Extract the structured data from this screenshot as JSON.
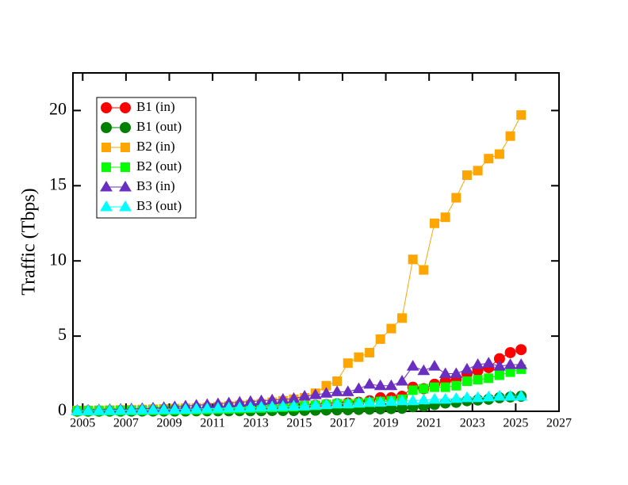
{
  "chart_data": {
    "type": "line",
    "ylabel": "Traffic (Tbps)",
    "x": [
      2004.75,
      2005.25,
      2005.75,
      2006.25,
      2006.75,
      2007.25,
      2007.75,
      2008.25,
      2008.75,
      2009.25,
      2009.75,
      2010.25,
      2010.75,
      2011.25,
      2011.75,
      2012.25,
      2012.75,
      2013.25,
      2013.75,
      2014.25,
      2014.75,
      2015.25,
      2015.75,
      2016.25,
      2016.75,
      2017.25,
      2017.75,
      2018.25,
      2018.75,
      2019.25,
      2019.75,
      2020.25,
      2020.75,
      2021.25,
      2021.75,
      2022.25,
      2022.75,
      2023.25,
      2023.75,
      2024.25,
      2024.75,
      2025.25
    ],
    "series": [
      {
        "name": "B1 (in)",
        "color": "#ff0000",
        "marker": "circle",
        "values": [
          0.02,
          0.03,
          0.03,
          0.04,
          0.05,
          0.05,
          0.06,
          0.07,
          0.08,
          0.09,
          0.1,
          0.11,
          0.12,
          0.13,
          0.15,
          0.17,
          0.19,
          0.21,
          0.24,
          0.27,
          0.3,
          0.35,
          0.4,
          0.45,
          0.5,
          0.55,
          0.6,
          0.7,
          0.9,
          0.9,
          1.0,
          1.6,
          1.5,
          1.8,
          2.0,
          2.1,
          2.5,
          2.7,
          2.9,
          3.5,
          3.9,
          4.1
        ]
      },
      {
        "name": "B1 (out)",
        "color": "#008000",
        "marker": "circle",
        "values": [
          0.01,
          0.01,
          0.01,
          0.01,
          0.01,
          0.01,
          0.02,
          0.02,
          0.02,
          0.02,
          0.02,
          0.03,
          0.03,
          0.03,
          0.03,
          0.04,
          0.04,
          0.04,
          0.05,
          0.05,
          0.05,
          0.06,
          0.07,
          0.08,
          0.09,
          0.1,
          0.12,
          0.14,
          0.16,
          0.18,
          0.2,
          0.3,
          0.35,
          0.45,
          0.55,
          0.6,
          0.7,
          0.75,
          0.8,
          0.9,
          0.95,
          1.0
        ]
      },
      {
        "name": "B2 (in)",
        "color": "#ffa500",
        "marker": "square",
        "values": [
          0.05,
          0.06,
          0.07,
          0.08,
          0.09,
          0.1,
          0.12,
          0.14,
          0.16,
          0.18,
          0.2,
          0.22,
          0.25,
          0.3,
          0.35,
          0.4,
          0.45,
          0.5,
          0.6,
          0.7,
          0.8,
          0.9,
          1.2,
          1.7,
          2.0,
          3.2,
          3.6,
          3.9,
          4.8,
          5.5,
          6.2,
          10.1,
          9.4,
          12.5,
          12.9,
          14.2,
          15.7,
          16.0,
          16.8,
          17.1,
          18.3,
          19.7
        ]
      },
      {
        "name": "B2 (out)",
        "color": "#00ff00",
        "marker": "square",
        "values": [
          0.02,
          0.03,
          0.03,
          0.04,
          0.04,
          0.05,
          0.06,
          0.07,
          0.08,
          0.09,
          0.1,
          0.11,
          0.12,
          0.14,
          0.16,
          0.18,
          0.2,
          0.22,
          0.25,
          0.28,
          0.3,
          0.35,
          0.4,
          0.45,
          0.5,
          0.5,
          0.55,
          0.6,
          0.65,
          0.7,
          0.8,
          1.4,
          1.5,
          1.6,
          1.6,
          1.7,
          2.0,
          2.1,
          2.2,
          2.4,
          2.6,
          2.8
        ]
      },
      {
        "name": "B3 (in)",
        "color": "#6a2ec0",
        "marker": "triangle",
        "values": [
          0.05,
          0.07,
          0.09,
          0.11,
          0.13,
          0.15,
          0.18,
          0.21,
          0.25,
          0.3,
          0.35,
          0.4,
          0.45,
          0.5,
          0.55,
          0.6,
          0.65,
          0.7,
          0.75,
          0.8,
          0.85,
          1.0,
          1.1,
          1.2,
          1.3,
          1.3,
          1.5,
          1.8,
          1.7,
          1.7,
          2.0,
          3.0,
          2.7,
          3.0,
          2.5,
          2.5,
          2.8,
          3.1,
          3.2,
          3.0,
          3.1,
          3.1
        ]
      },
      {
        "name": "B3 (out)",
        "color": "#00ffff",
        "marker": "triangle",
        "values": [
          0.03,
          0.04,
          0.05,
          0.06,
          0.07,
          0.08,
          0.09,
          0.1,
          0.11,
          0.12,
          0.14,
          0.16,
          0.18,
          0.2,
          0.22,
          0.24,
          0.26,
          0.28,
          0.3,
          0.32,
          0.34,
          0.36,
          0.4,
          0.45,
          0.5,
          0.5,
          0.55,
          0.6,
          0.6,
          0.65,
          0.7,
          0.7,
          0.75,
          0.8,
          0.8,
          0.85,
          0.9,
          0.9,
          0.95,
          1.0,
          1.0,
          1.0
        ]
      }
    ],
    "xlim": [
      2004.55,
      2027
    ],
    "xticks": [
      2005,
      2007,
      2009,
      2011,
      2013,
      2015,
      2017,
      2019,
      2021,
      2023,
      2025,
      2027
    ],
    "ylim": [
      0,
      22.5
    ],
    "yticks": [
      0,
      5,
      10,
      15,
      20
    ],
    "legend": "upper-left"
  }
}
